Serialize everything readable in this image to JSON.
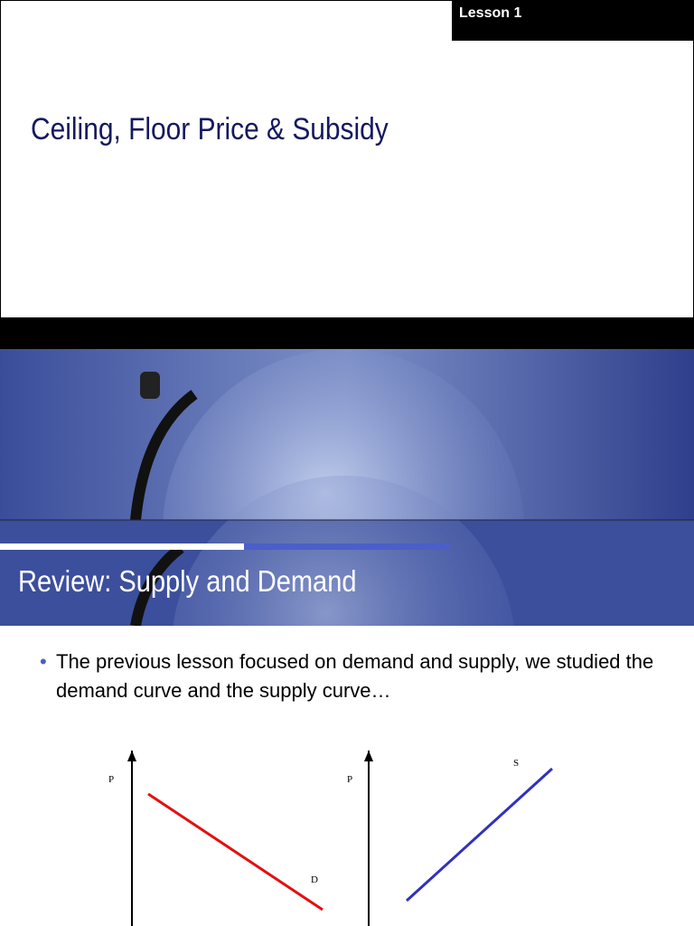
{
  "slide1": {
    "label": "Lesson 1",
    "title": "Ceiling, Floor Price & Subsidy"
  },
  "slide2": {
    "title": "Review: Supply and Demand",
    "bullet": "The previous lesson focused on demand and supply, we studied the demand curve and the supply curve…",
    "left_graph": {
      "axis_label": "P",
      "curve_label": "D"
    },
    "right_graph": {
      "axis_label": "P",
      "curve_label": "S"
    }
  }
}
